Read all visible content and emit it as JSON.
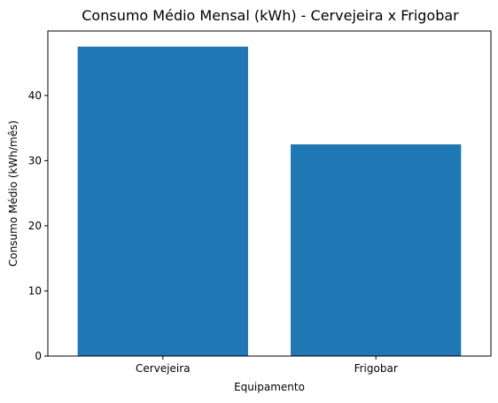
{
  "chart_data": {
    "type": "bar",
    "title": "Consumo Médio Mensal (kWh) - Cervejeira x Frigobar",
    "xlabel": "Equipamento",
    "ylabel": "Consumo Médio (kWh/mês)",
    "categories": [
      "Cervejeira",
      "Frigobar"
    ],
    "values": [
      47.5,
      32.5
    ],
    "ylim": [
      0,
      49.9
    ],
    "yticks": [
      0,
      10,
      20,
      30,
      40
    ],
    "grid": false,
    "bar_color": "#1f77b4"
  }
}
